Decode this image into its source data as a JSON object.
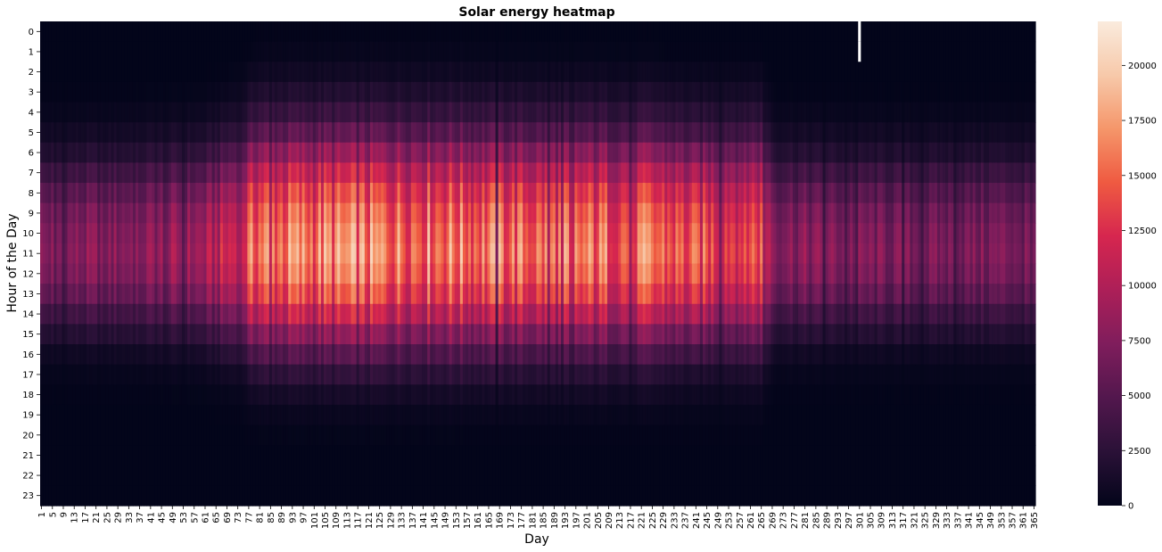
{
  "chart_data": {
    "type": "heatmap",
    "title": "Solar energy heatmap",
    "xlabel": "Day",
    "ylabel": "Hour of the Day",
    "x_range": [
      1,
      365
    ],
    "x_tick_labels": [
      "1",
      "5",
      "9",
      "13",
      "17",
      "21",
      "25",
      "29",
      "33",
      "37",
      "41",
      "45",
      "49",
      "53",
      "57",
      "61",
      "65",
      "69",
      "73",
      "77",
      "81",
      "85",
      "89",
      "93",
      "97",
      "101",
      "105",
      "109",
      "113",
      "117",
      "121",
      "125",
      "129",
      "133",
      "137",
      "141",
      "145",
      "149",
      "153",
      "157",
      "161",
      "165",
      "169",
      "173",
      "177",
      "181",
      "185",
      "189",
      "193",
      "197",
      "201",
      "205",
      "209",
      "213",
      "217",
      "221",
      "225",
      "229",
      "233",
      "237",
      "241",
      "245",
      "249",
      "253",
      "257",
      "261",
      "265",
      "269",
      "273",
      "277",
      "281",
      "285",
      "289",
      "293",
      "297",
      "301",
      "305",
      "309",
      "313",
      "317",
      "321",
      "325",
      "329",
      "333",
      "337",
      "341",
      "345",
      "349",
      "353",
      "357",
      "361",
      "365"
    ],
    "y_tick_labels": [
      "0",
      "1",
      "2",
      "3",
      "4",
      "5",
      "6",
      "7",
      "8",
      "9",
      "10",
      "11",
      "12",
      "13",
      "14",
      "15",
      "16",
      "17",
      "18",
      "19",
      "20",
      "21",
      "22",
      "23"
    ],
    "colorbar": {
      "min": 0,
      "max": 22000,
      "ticks": [
        0,
        2500,
        5000,
        7500,
        10000,
        12500,
        15000,
        17500,
        20000
      ],
      "tick_labels": [
        "0",
        "2500",
        "5000",
        "7500",
        "10000",
        "12500",
        "15000",
        "17500",
        "20000"
      ],
      "colors": [
        "#03051a",
        "#2a1137",
        "#52174d",
        "#7f1d5c",
        "#ac1f58",
        "#d6264f",
        "#ef5a41",
        "#f5966a",
        "#f7c9aa",
        "#faebdd"
      ]
    },
    "hourly_peak_values": [
      0,
      0,
      0,
      100,
      900,
      2500,
      5000,
      9500,
      14000,
      17500,
      19500,
      20500,
      19000,
      15500,
      10000,
      5500,
      2000,
      600,
      100,
      0,
      0,
      0,
      0,
      0
    ],
    "peak_day_scale": {
      "days": [
        1,
        30,
        60,
        75,
        80,
        120,
        150,
        175,
        200,
        225,
        240,
        265,
        270,
        300,
        330,
        365
      ],
      "factors": [
        0.45,
        0.48,
        0.55,
        0.8,
        1.0,
        1.0,
        1.0,
        0.95,
        0.95,
        0.95,
        0.85,
        0.9,
        0.5,
        0.45,
        0.42,
        0.45
      ]
    },
    "season_hour_shift": 1.2,
    "missing_cells": [
      {
        "day": 301,
        "hours": [
          0,
          1
        ]
      }
    ],
    "annotations": []
  }
}
